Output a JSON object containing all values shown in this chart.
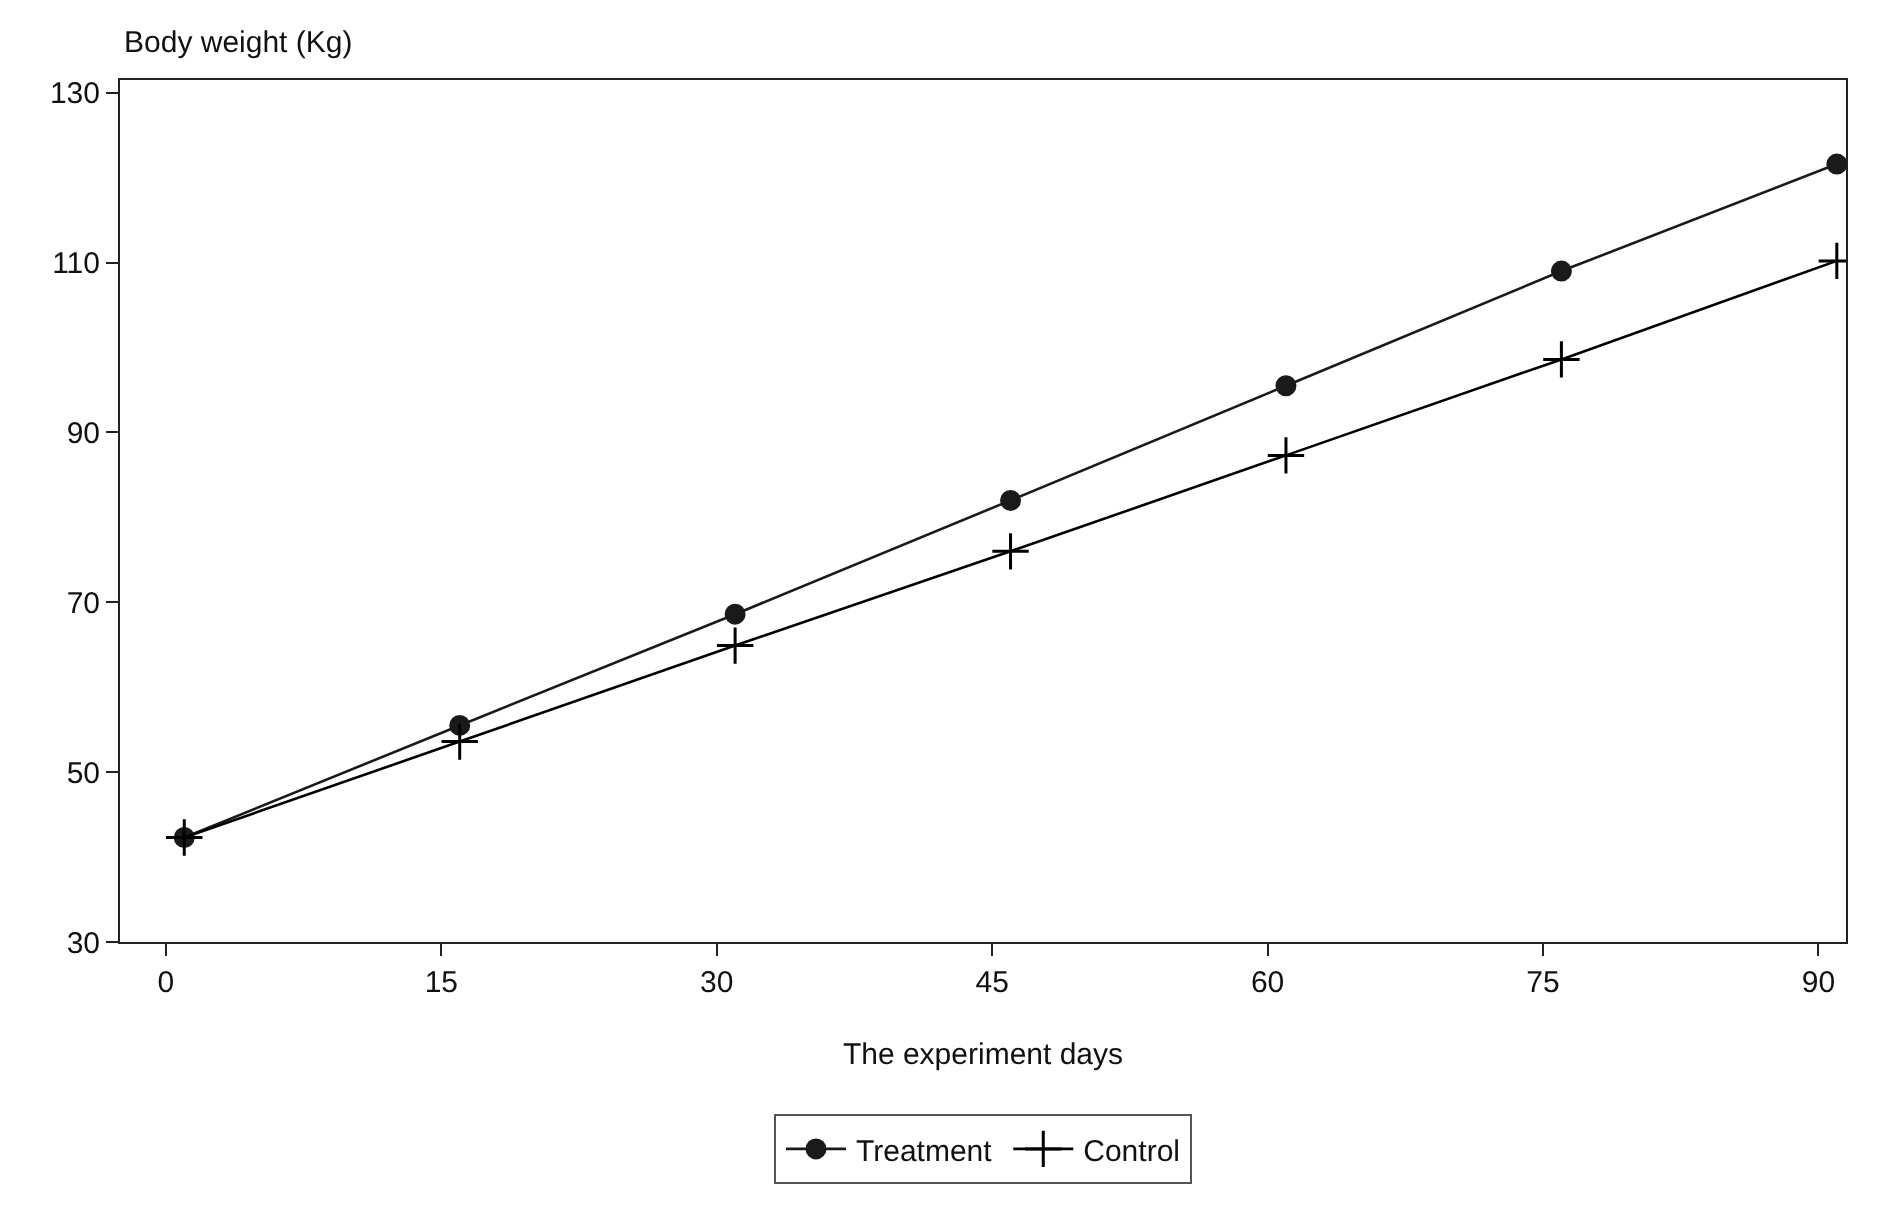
{
  "chart_data": {
    "type": "line",
    "ylabel": "Body weight (Kg)",
    "xlabel": "The experiment days",
    "x": [
      1,
      16,
      31,
      46,
      61,
      76,
      91
    ],
    "series": [
      {
        "name": "Treatment",
        "color": "#1a1a1a",
        "marker": "circle",
        "values": [
          42.3,
          55.5,
          68.6,
          82.0,
          95.5,
          109.0,
          121.6
        ]
      },
      {
        "name": "Control",
        "color": "#000000",
        "marker": "cross",
        "values": [
          42.3,
          53.6,
          64.9,
          76.0,
          87.3,
          98.6,
          110.2
        ]
      }
    ],
    "xlim": [
      -2.5,
      91.5
    ],
    "xticks": [
      0,
      15,
      30,
      45,
      60,
      75,
      90
    ],
    "ylim": [
      30,
      131.5
    ],
    "yticks": [
      30,
      50,
      70,
      90,
      110,
      130
    ],
    "legend": "bottom",
    "line_style": "solid"
  }
}
